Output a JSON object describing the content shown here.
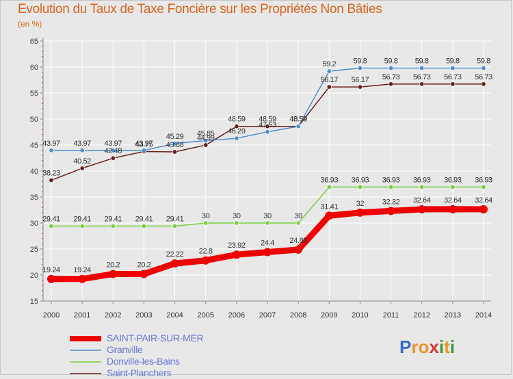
{
  "chart_data": {
    "type": "line",
    "title": "Evolution du Taux de Taxe Foncière sur les Propriétés Non Bâties",
    "ylabel": "(en %)",
    "xlabel": "",
    "ylim": [
      15,
      65
    ],
    "yticks": [
      15,
      20,
      25,
      30,
      35,
      40,
      45,
      50,
      55,
      60,
      65
    ],
    "x": [
      "2000",
      "2001",
      "2002",
      "2003",
      "2004",
      "2005",
      "2006",
      "2007",
      "2008",
      "2009",
      "2010",
      "2011",
      "2012",
      "2013",
      "2014"
    ],
    "series": [
      {
        "name": "SAINT-PAIR-SUR-MER",
        "color": "#ee0000",
        "values": [
          19.24,
          19.24,
          20.2,
          20.2,
          22.22,
          22.8,
          23.92,
          24.4,
          24.88,
          31.41,
          32,
          32.32,
          32.64,
          32.64,
          32.64
        ],
        "labels": [
          "19.24",
          "19.24",
          "20.2",
          "20.2",
          "22.22",
          "22.8",
          "23.92",
          "24.4",
          "24.88",
          "31.41",
          "32",
          "32.32",
          "32.64",
          "32.64",
          "32.64"
        ]
      },
      {
        "name": "Granville",
        "color": "#4a90d0",
        "values": [
          43.97,
          43.97,
          43.97,
          43.97,
          45.29,
          45.85,
          46.29,
          47.53,
          48.59,
          59.2,
          59.8,
          59.8,
          59.8,
          59.8,
          59.8
        ],
        "labels": [
          "43.97",
          "43.97",
          "43.97",
          "43.97",
          "45.29",
          "45.85",
          "46.29",
          "47.53",
          "48.59",
          "59.2",
          "59.8",
          "59.8",
          "59.8",
          "59.8",
          "59.8"
        ]
      },
      {
        "name": "Donville-les-Bains",
        "color": "#7ed040",
        "values": [
          29.41,
          29.41,
          29.41,
          29.41,
          29.41,
          30,
          30,
          30,
          30,
          36.93,
          36.93,
          36.93,
          36.93,
          36.93,
          36.93
        ],
        "labels": [
          "29.41",
          "29.41",
          "29.41",
          "29.41",
          "29.41",
          "30",
          "30",
          "30",
          "30",
          "36.93",
          "36.93",
          "36.93",
          "36.93",
          "36.93",
          "36.93"
        ]
      },
      {
        "name": "Saint-Planchers",
        "color": "#6b1e1e",
        "values": [
          38.23,
          40.52,
          42.48,
          43.75,
          43.68,
          44.99,
          48.59,
          48.59,
          48.59,
          56.17,
          56.17,
          56.73,
          56.73,
          56.73,
          56.73
        ],
        "labels": [
          "38.23",
          "40.52",
          "42.48",
          "43.75",
          "43.68",
          "44.99",
          "48.59",
          "48.59",
          "48.59",
          "56.17",
          "56.17",
          "56.73",
          "56.73",
          "56.73",
          "56.73"
        ]
      }
    ],
    "legend_position": "bottom-left"
  },
  "logo": {
    "letters": [
      "P",
      "r",
      "o",
      "x",
      "i",
      "t",
      "i"
    ],
    "colors": [
      "#3a6ad0",
      "#e8962a",
      "#e8962a",
      "#d03a3a",
      "#3a9a3a",
      "#e8962a",
      "#3a9a3a"
    ]
  }
}
